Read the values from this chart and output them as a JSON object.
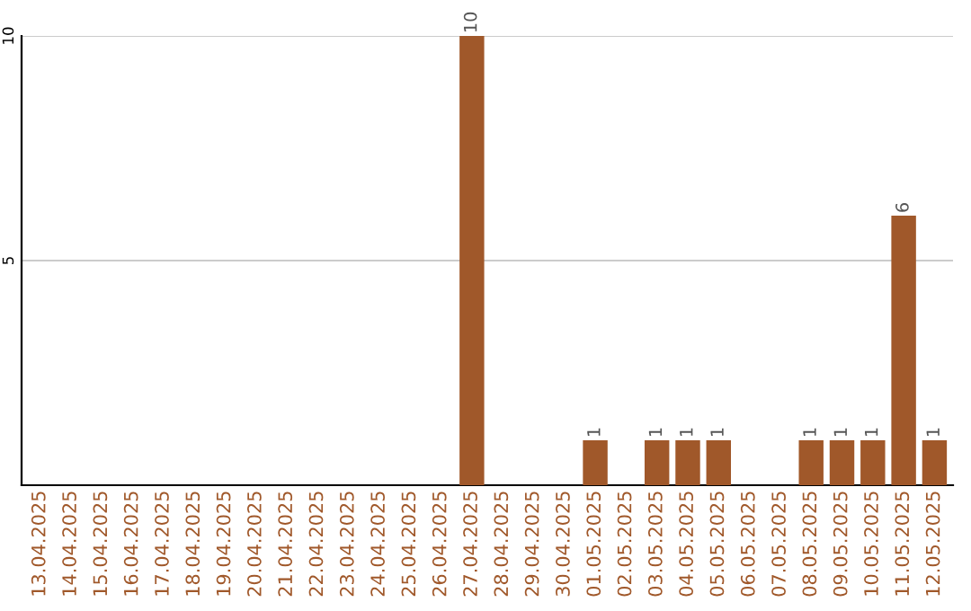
{
  "chart_data": {
    "type": "bar",
    "categories": [
      "13.04.2025",
      "14.04.2025",
      "15.04.2025",
      "16.04.2025",
      "17.04.2025",
      "18.04.2025",
      "19.04.2025",
      "20.04.2025",
      "21.04.2025",
      "22.04.2025",
      "23.04.2025",
      "24.04.2025",
      "25.04.2025",
      "26.04.2025",
      "27.04.2025",
      "28.04.2025",
      "29.04.2025",
      "30.04.2025",
      "01.05.2025",
      "02.05.2025",
      "03.05.2025",
      "04.05.2025",
      "05.05.2025",
      "06.05.2025",
      "07.05.2025",
      "08.05.2025",
      "09.05.2025",
      "10.05.2025",
      "11.05.2025",
      "12.05.2025"
    ],
    "values": [
      0,
      0,
      0,
      0,
      0,
      0,
      0,
      0,
      0,
      0,
      0,
      0,
      0,
      0,
      10,
      0,
      0,
      0,
      1,
      0,
      1,
      1,
      1,
      0,
      0,
      1,
      1,
      1,
      6,
      1
    ],
    "value_labels": [
      null,
      null,
      null,
      null,
      null,
      null,
      null,
      null,
      null,
      null,
      null,
      null,
      null,
      null,
      "10",
      null,
      null,
      null,
      "1",
      null,
      "1",
      "1",
      "1",
      null,
      null,
      "1",
      "1",
      "1",
      "6",
      "1"
    ],
    "color": "#a0582a",
    "ylim": [
      0,
      10
    ],
    "yticks": [
      5,
      10
    ],
    "grid": "y"
  }
}
